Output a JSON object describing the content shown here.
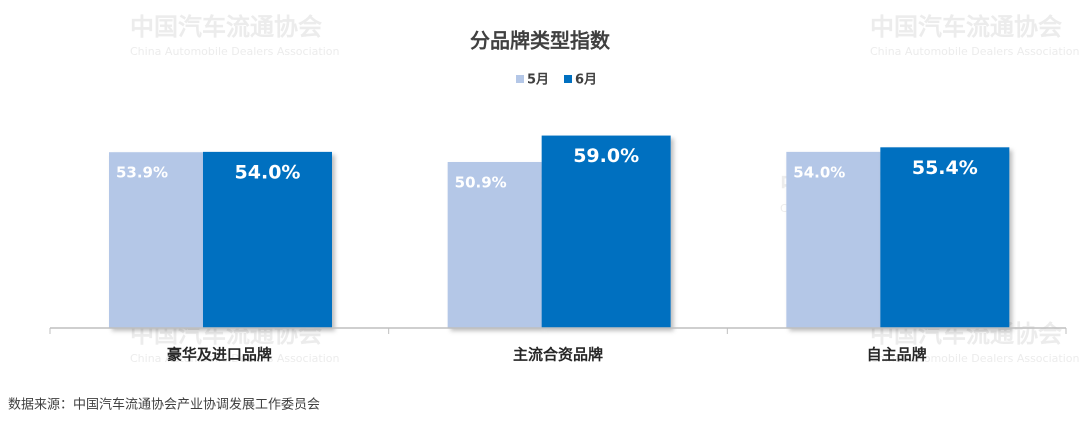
{
  "chart_data": {
    "type": "bar",
    "title": "分品牌类型指数",
    "categories": [
      "豪华及进口品牌",
      "主流合资品牌",
      "自主品牌"
    ],
    "series": [
      {
        "name": "5月",
        "color": "#b4c7e7",
        "values": [
          53.9,
          50.9,
          54.0
        ],
        "value_labels": [
          "53.9%",
          "50.9%",
          "54.0%"
        ]
      },
      {
        "name": "6月",
        "color": "#0070c0",
        "values": [
          54.0,
          59.0,
          55.4
        ],
        "value_labels": [
          "54.0%",
          "59.0%",
          "55.4%"
        ]
      }
    ],
    "ylim": [
      0,
      65
    ],
    "legend": "top",
    "watermark": {
      "name": "中国汽车流通协会",
      "english": "China Automobile Dealers Association"
    },
    "source": "数据来源：中国汽车流通协会产业协调发展工作委员会"
  }
}
